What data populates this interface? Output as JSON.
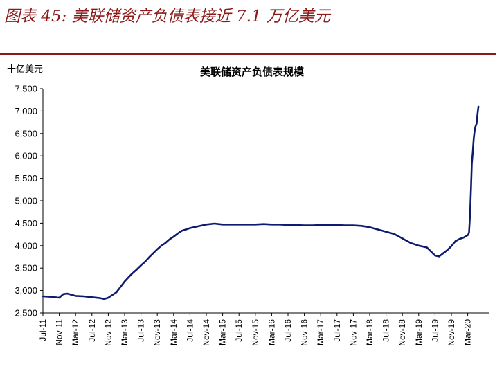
{
  "figure_title": "图表 45: 美联储资产负债表接近 7.1 万亿美元",
  "chart_data": {
    "type": "line",
    "title": "美联储资产负债表规模",
    "ylabel": "十亿美元",
    "xlabel": "",
    "ylim": [
      2500,
      7500
    ],
    "yticks": [
      "2,500",
      "3,000",
      "3,500",
      "4,000",
      "4,500",
      "5,000",
      "5,500",
      "6,000",
      "6,500",
      "7,000",
      "7,500"
    ],
    "xticks": [
      "Jul-11",
      "Nov-11",
      "Mar-12",
      "Jul-12",
      "Nov-12",
      "Mar-13",
      "Jul-13",
      "Nov-13",
      "Mar-14",
      "Jul-14",
      "Nov-14",
      "Mar-15",
      "Jul-15",
      "Nov-15",
      "Mar-16",
      "Jul-16",
      "Nov-16",
      "Mar-17",
      "Jul-17",
      "Nov-17",
      "Mar-18",
      "Jul-18",
      "Nov-18",
      "Mar-19",
      "Jul-19",
      "Nov-19",
      "Mar-20"
    ],
    "grid": false,
    "legend": "none",
    "line_color": "#0d1a6e",
    "series": [
      {
        "x": [
          "2011-07",
          "2011-09",
          "2011-11",
          "2011-12",
          "2012-01",
          "2012-03",
          "2012-05",
          "2012-07",
          "2012-09",
          "2012-10",
          "2012-11",
          "2012-12",
          "2013-01",
          "2013-02",
          "2013-03",
          "2013-04",
          "2013-05",
          "2013-06",
          "2013-07",
          "2013-08",
          "2013-09",
          "2013-10",
          "2013-11",
          "2013-12",
          "2014-01",
          "2014-02",
          "2014-03",
          "2014-04",
          "2014-05",
          "2014-06",
          "2014-07",
          "2014-08",
          "2014-09",
          "2014-10",
          "2014-11",
          "2014-12",
          "2015-01",
          "2015-02",
          "2015-03",
          "2015-05",
          "2015-07",
          "2015-09",
          "2015-11",
          "2016-01",
          "2016-03",
          "2016-05",
          "2016-07",
          "2016-09",
          "2016-11",
          "2017-01",
          "2017-03",
          "2017-05",
          "2017-07",
          "2017-09",
          "2017-11",
          "2018-01",
          "2018-03",
          "2018-05",
          "2018-07",
          "2018-09",
          "2018-11",
          "2019-01",
          "2019-03",
          "2019-05",
          "2019-07",
          "2019-08",
          "2019-09",
          "2019-10",
          "2019-11",
          "2019-12",
          "2020-01",
          "2020-02",
          "2020-03-04",
          "2020-03-11",
          "2020-03-18",
          "2020-03-25",
          "2020-04-01",
          "2020-04-08",
          "2020-04-15",
          "2020-04-22",
          "2020-04-29",
          "2020-05-06",
          "2020-05-13",
          "2020-05-20"
        ],
        "values": [
          2870,
          2860,
          2840,
          2920,
          2930,
          2880,
          2870,
          2850,
          2830,
          2810,
          2840,
          2900,
          2960,
          3080,
          3200,
          3300,
          3390,
          3470,
          3560,
          3640,
          3740,
          3830,
          3920,
          4000,
          4060,
          4140,
          4200,
          4270,
          4330,
          4360,
          4390,
          4410,
          4430,
          4450,
          4470,
          4480,
          4490,
          4480,
          4470,
          4470,
          4470,
          4470,
          4470,
          4480,
          4470,
          4470,
          4460,
          4460,
          4450,
          4450,
          4460,
          4460,
          4460,
          4450,
          4450,
          4440,
          4410,
          4360,
          4310,
          4260,
          4160,
          4060,
          4000,
          3960,
          3780,
          3760,
          3830,
          3900,
          3990,
          4100,
          4150,
          4180,
          4240,
          4300,
          4670,
          5260,
          5830,
          6080,
          6370,
          6570,
          6660,
          6720,
          6930,
          7100
        ]
      }
    ]
  }
}
